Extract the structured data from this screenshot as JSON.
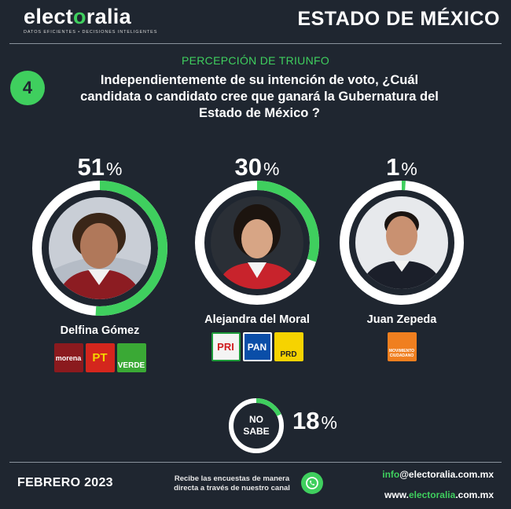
{
  "brand": {
    "name_pre": "elect",
    "name_v": "o",
    "name_post": "ralia",
    "tagline": "DATOS EFICIENTES • DECISIONES INTELIGENTES"
  },
  "header": {
    "state": "ESTADO DE MÉXICO"
  },
  "question": {
    "number": "4",
    "kicker": "PERCEPCIÓN DE TRIUNFO",
    "text": "Independientemente de su intención de voto, ¿Cuál candidata o candidato cree que ganará la Gubernatura del Estado de México ?"
  },
  "candidates": [
    {
      "name": "Delfina Gómez",
      "percent": 51,
      "percent_label": "51",
      "parties": [
        "morena",
        "PT",
        "VERDE"
      ]
    },
    {
      "name": "Alejandra del Moral",
      "percent": 30,
      "percent_label": "30",
      "parties": [
        "PRI",
        "PAN",
        "PRD"
      ]
    },
    {
      "name": "Juan Zepeda",
      "percent": 1,
      "percent_label": "1",
      "parties": [
        "MOVIMIENTO CIUDADANO"
      ]
    }
  ],
  "percent_sign": "%",
  "no_sabe": {
    "line1": "NO",
    "line2": "SABE",
    "percent": 18,
    "percent_label": "18"
  },
  "footer": {
    "month": "FEBRERO 2023",
    "cta": "Recibe las encuestas de manera directa a través de nuestro canal",
    "email_user": "info",
    "email_domain": "@electoralia.com.mx",
    "web_prefix": "www.",
    "web_brand": "electoralia",
    "web_suffix": ".com.mx"
  },
  "colors": {
    "background": "#1f2630",
    "accent": "#3fcf5e",
    "ring_track": "#ffffff"
  },
  "icons": {
    "whatsapp": "whatsapp-icon"
  }
}
